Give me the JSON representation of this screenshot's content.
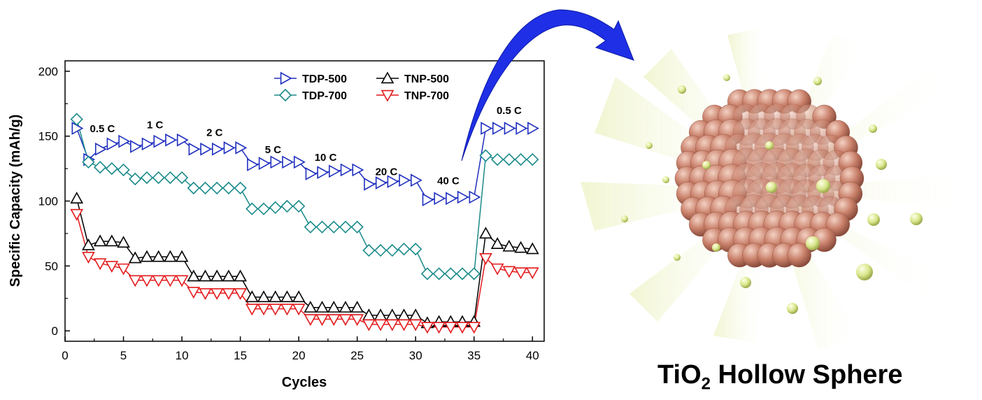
{
  "chart_data": {
    "type": "line",
    "title": "",
    "xlabel": "Cycles",
    "ylabel": "Specific Capacity (mAh/g)",
    "xlim": [
      0,
      41
    ],
    "ylim": [
      -8,
      208
    ],
    "xticks": [
      0,
      5,
      10,
      15,
      20,
      25,
      30,
      35,
      40
    ],
    "yticks": [
      0,
      50,
      100,
      150,
      200
    ],
    "grid": false,
    "legend_position": "top-right",
    "x": [
      1,
      2,
      3,
      4,
      5,
      6,
      7,
      8,
      9,
      10,
      11,
      12,
      13,
      14,
      15,
      16,
      17,
      18,
      19,
      20,
      21,
      22,
      23,
      24,
      25,
      26,
      27,
      28,
      29,
      30,
      31,
      32,
      33,
      34,
      35,
      36,
      37,
      38,
      39,
      40
    ],
    "series": [
      {
        "name": "TDP-500",
        "color": "#1f2fbf",
        "marker": "triangle-right",
        "values": [
          156,
          132,
          140,
          144,
          146,
          142,
          144,
          146,
          147,
          147,
          140,
          140,
          140,
          141,
          141,
          128,
          129,
          130,
          130,
          130,
          121,
          122,
          123,
          124,
          124,
          113,
          114,
          115,
          116,
          116,
          101,
          102,
          102,
          103,
          103,
          156,
          156,
          156,
          156,
          156
        ]
      },
      {
        "name": "TNP-500",
        "color": "#000000",
        "marker": "triangle-up",
        "values": [
          102,
          66,
          69,
          69,
          68,
          56,
          57,
          57,
          57,
          57,
          42,
          42,
          42,
          42,
          42,
          26,
          26,
          26,
          26,
          26,
          18,
          18,
          18,
          18,
          18,
          12,
          12,
          12,
          12,
          12,
          6,
          7,
          7,
          7,
          7,
          75,
          67,
          65,
          64,
          63
        ]
      },
      {
        "name": "TDP-700",
        "color": "#1a8a8a",
        "marker": "diamond",
        "values": [
          163,
          130,
          126,
          125,
          124,
          117,
          118,
          118,
          118,
          118,
          110,
          110,
          110,
          110,
          110,
          94,
          94,
          95,
          96,
          96,
          80,
          80,
          80,
          80,
          80,
          62,
          62,
          62,
          63,
          63,
          44,
          44,
          44,
          44,
          44,
          135,
          132,
          132,
          132,
          132
        ]
      },
      {
        "name": "TNP-700",
        "color": "#e31a1c",
        "marker": "triangle-down",
        "values": [
          90,
          57,
          52,
          50,
          48,
          39,
          39,
          39,
          39,
          39,
          30,
          29,
          29,
          29,
          29,
          17,
          17,
          17,
          17,
          17,
          9,
          9,
          9,
          9,
          9,
          5,
          5,
          5,
          5,
          5,
          3,
          3,
          3,
          3,
          3,
          56,
          48,
          46,
          45,
          45
        ]
      }
    ],
    "annotations": [
      {
        "text": "0.5 C",
        "x": 3.2,
        "y": 153
      },
      {
        "text": "1 C",
        "x": 7.7,
        "y": 156
      },
      {
        "text": "2 C",
        "x": 12.8,
        "y": 150
      },
      {
        "text": "5 C",
        "x": 17.8,
        "y": 137
      },
      {
        "text": "10 C",
        "x": 22.3,
        "y": 131
      },
      {
        "text": "20 C",
        "x": 27.5,
        "y": 120
      },
      {
        "text": "40 C",
        "x": 32.8,
        "y": 113
      },
      {
        "text": "0.5 C",
        "x": 38.0,
        "y": 167
      }
    ]
  },
  "figure": {
    "caption_main": "TiO",
    "caption_sub": "2",
    "caption_rest": " Hollow Sphere",
    "arrow_color": "#1f2fe6",
    "shell_color": "#c9806a",
    "particle_color": "#d8e68a"
  }
}
